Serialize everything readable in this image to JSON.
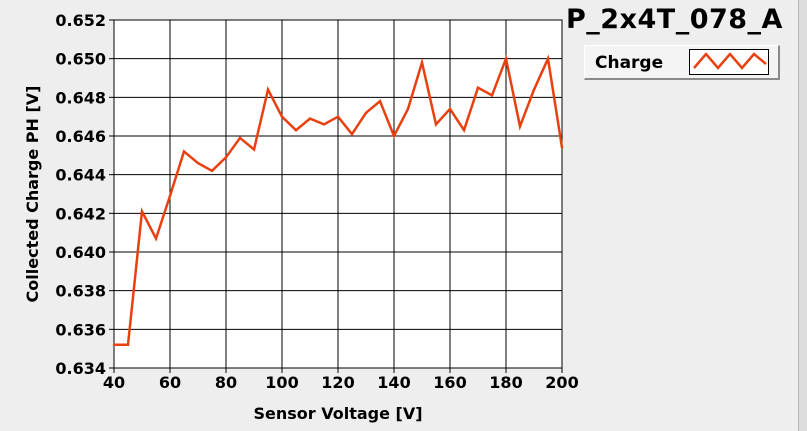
{
  "chart_data": {
    "type": "line",
    "title": "P_2x4T_078_A",
    "xlabel": "Sensor Voltage [V]",
    "ylabel": "Collected Charge PH [V]",
    "xlim": [
      40,
      200
    ],
    "ylim": [
      0.634,
      0.652
    ],
    "xticks": [
      40,
      60,
      80,
      100,
      120,
      140,
      160,
      180,
      200
    ],
    "xtick_labels": [
      "40",
      "60",
      "80",
      "100",
      "120",
      "140",
      "160",
      "180",
      "200"
    ],
    "yticks": [
      0.634,
      0.636,
      0.638,
      0.64,
      0.642,
      0.644,
      0.646,
      0.648,
      0.65,
      0.652
    ],
    "ytick_labels": [
      "0.634",
      "0.636",
      "0.638",
      "0.640",
      "0.642",
      "0.644",
      "0.646",
      "0.648",
      "0.650",
      "0.652"
    ],
    "grid": true,
    "legend_position": "top-right",
    "series": [
      {
        "name": "Charge",
        "color": "#e8410f",
        "x": [
          40,
          45,
          50,
          55,
          60,
          65,
          70,
          75,
          80,
          85,
          90,
          95,
          100,
          105,
          110,
          115,
          120,
          125,
          130,
          135,
          140,
          145,
          150,
          155,
          160,
          165,
          170,
          175,
          180,
          185,
          190,
          195,
          200
        ],
        "y": [
          0.6352,
          0.6352,
          0.6421,
          0.6407,
          0.6429,
          0.6452,
          0.6446,
          0.6442,
          0.6449,
          0.6459,
          0.6453,
          0.6484,
          0.647,
          0.6463,
          0.6469,
          0.6466,
          0.647,
          0.6461,
          0.6472,
          0.6478,
          0.646,
          0.6474,
          0.6498,
          0.6466,
          0.6474,
          0.6463,
          0.6485,
          0.6481,
          0.65,
          0.6465,
          0.6484,
          0.65,
          0.6454
        ]
      }
    ]
  }
}
